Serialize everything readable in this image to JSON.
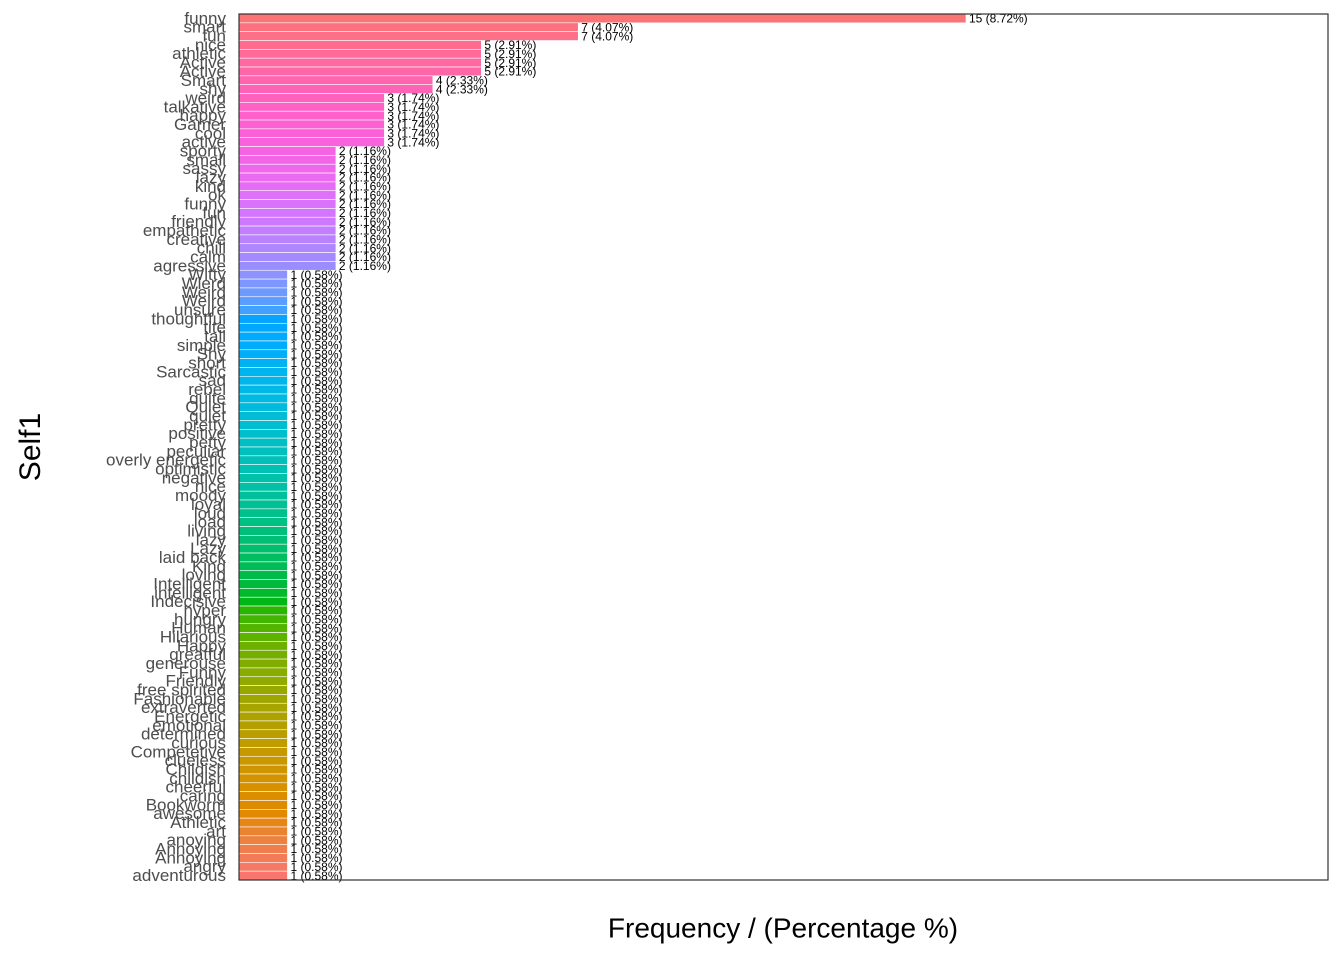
{
  "chart_data": {
    "type": "barh",
    "y_label": "Self1",
    "x_label": "Frequency / (Percentage %)",
    "palette": "hue",
    "xlim": [
      0,
      22.47
    ],
    "categories": [
      "funny",
      "smart",
      "fun",
      "nice",
      "athletic",
      "Active",
      "Active",
      "Smart",
      "shy",
      "weird",
      "talkative",
      "happy",
      "Gamer",
      "cool",
      "active",
      "sporty",
      "small",
      "sassy",
      "lazy",
      "kind",
      "ok",
      "funny",
      "fun",
      "friendly",
      "empathetic",
      "creative",
      "chill",
      "calm",
      "agressive",
      "Witty",
      "Wierd",
      "Weird",
      "Weird",
      "unsure",
      "thoughtful",
      "tite",
      "tall",
      "simple",
      "Shy",
      "short",
      "Sarcastic",
      "sad",
      "rebel",
      "quite",
      "Quiet",
      "quiet",
      "pretty",
      "positive",
      "petty",
      "peculiar",
      "overly energetic",
      "optimistic",
      "negative",
      "nice",
      "moody",
      "loyal",
      "loud",
      "load",
      "living",
      "lazy",
      "Lazy",
      "laid back",
      "Kind",
      "loving",
      "Intelligent",
      "intelligent",
      "Indecisive",
      "hyper",
      "hungry",
      "Human",
      "Hilarious",
      "Happy",
      "greatful",
      "generouse",
      "Funny",
      "Friendly",
      "free spirited",
      "Fashionable",
      "extraverted",
      "Energetic",
      "emotional",
      "determined",
      "curious",
      "Competetive",
      "clueless",
      "Childish",
      "childish",
      "cheerful",
      "caring",
      "Bookworm",
      "awesome",
      "Athletic",
      "art",
      "anoying",
      "Annoying",
      "Annoying",
      "angry",
      "adventurous"
    ],
    "values": [
      15,
      7,
      7,
      5,
      5,
      5,
      5,
      4,
      4,
      3,
      3,
      3,
      3,
      3,
      3,
      2,
      2,
      2,
      2,
      2,
      2,
      2,
      2,
      2,
      2,
      2,
      2,
      2,
      2,
      1,
      1,
      1,
      1,
      1,
      1,
      1,
      1,
      1,
      1,
      1,
      1,
      1,
      1,
      1,
      1,
      1,
      1,
      1,
      1,
      1,
      1,
      1,
      1,
      1,
      1,
      1,
      1,
      1,
      1,
      1,
      1,
      1,
      1,
      1,
      1,
      1,
      1,
      1,
      1,
      1,
      1,
      1,
      1,
      1,
      1,
      1,
      1,
      1,
      1,
      1,
      1,
      1,
      1,
      1,
      1,
      1,
      1,
      1,
      1,
      1,
      1,
      1,
      1,
      1,
      1,
      1,
      1,
      1
    ],
    "value_labels": [
      "15 (8.72%)",
      "7 (4.07%)",
      "7 (4.07%)",
      "5 (2.91%)",
      "5 (2.91%)",
      "5 (2.91%)",
      "5 (2.91%)",
      "4 (2.33%)",
      "4 (2.33%)",
      "3 (1.74%)",
      "3 (1.74%)",
      "3 (1.74%)",
      "3 (1.74%)",
      "3 (1.74%)",
      "3 (1.74%)",
      "2 (1.16%)",
      "2 (1.16%)",
      "2 (1.16%)",
      "2 (1.16%)",
      "2 (1.16%)",
      "2 (1.16%)",
      "2 (1.16%)",
      "2 (1.16%)",
      "2 (1.16%)",
      "2 (1.16%)",
      "2 (1.16%)",
      "2 (1.16%)",
      "2 (1.16%)",
      "2 (1.16%)",
      "1 (0.58%)",
      "1 (0.58%)",
      "1 (0.58%)",
      "1 (0.58%)",
      "1 (0.58%)",
      "1 (0.58%)",
      "1 (0.58%)",
      "1 (0.58%)",
      "1 (0.58%)",
      "1 (0.58%)",
      "1 (0.58%)",
      "1 (0.58%)",
      "1 (0.58%)",
      "1 (0.58%)",
      "1 (0.58%)",
      "1 (0.58%)",
      "1 (0.58%)",
      "1 (0.58%)",
      "1 (0.58%)",
      "1 (0.58%)",
      "1 (0.58%)",
      "1 (0.58%)",
      "1 (0.58%)",
      "1 (0.58%)",
      "1 (0.58%)",
      "1 (0.58%)",
      "1 (0.58%)",
      "1 (0.58%)",
      "1 (0.58%)",
      "1 (0.58%)",
      "1 (0.58%)",
      "1 (0.58%)",
      "1 (0.58%)",
      "1 (0.58%)",
      "1 (0.58%)",
      "1 (0.58%)",
      "1 (0.58%)",
      "1 (0.58%)",
      "1 (0.58%)",
      "1 (0.58%)",
      "1 (0.58%)",
      "1 (0.58%)",
      "1 (0.58%)",
      "1 (0.58%)",
      "1 (0.58%)",
      "1 (0.58%)",
      "1 (0.58%)",
      "1 (0.58%)",
      "1 (0.58%)",
      "1 (0.58%)",
      "1 (0.58%)",
      "1 (0.58%)",
      "1 (0.58%)",
      "1 (0.58%)",
      "1 (0.58%)",
      "1 (0.58%)",
      "1 (0.58%)",
      "1 (0.58%)",
      "1 (0.58%)",
      "1 (0.58%)",
      "1 (0.58%)",
      "1 (0.58%)",
      "1 (0.58%)",
      "1 (0.58%)",
      "1 (0.58%)",
      "1 (0.58%)",
      "1 (0.58%)",
      "1 (0.58%)",
      "1 (0.58%)"
    ]
  }
}
